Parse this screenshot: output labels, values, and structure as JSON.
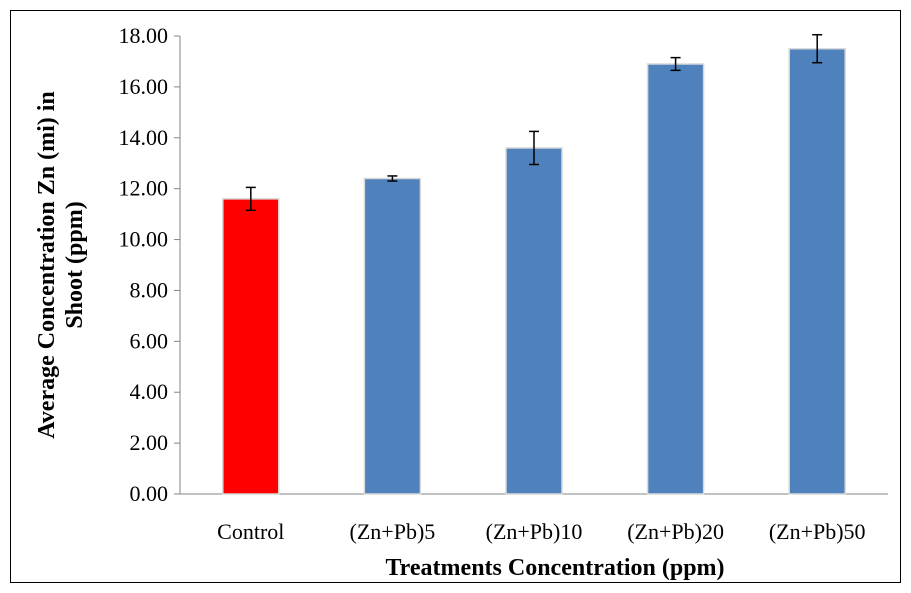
{
  "chart_data": {
    "type": "bar",
    "categories": [
      "Control",
      "(Zn+Pb)5",
      "(Zn+Pb)10",
      "(Zn+Pb)20",
      "(Zn+Pb)50"
    ],
    "values": [
      11.6,
      12.4,
      13.6,
      16.9,
      17.5
    ],
    "errors": [
      0.45,
      0.1,
      0.65,
      0.25,
      0.55
    ],
    "bar_colors": [
      "#ff0000",
      "#4f81bd",
      "#4f81bd",
      "#4f81bd",
      "#4f81bd"
    ],
    "ylim": [
      0,
      18
    ],
    "yticks": [
      "0.00",
      "2.00",
      "4.00",
      "6.00",
      "8.00",
      "10.00",
      "12.00",
      "14.00",
      "16.00",
      "18.00"
    ],
    "xlabel": "Treatments Concentration  (ppm)",
    "ylabel_lines": [
      "Average Concentration Zn (mi) in",
      "Shoot  (ppm)"
    ],
    "grid": false,
    "legend": "none"
  }
}
